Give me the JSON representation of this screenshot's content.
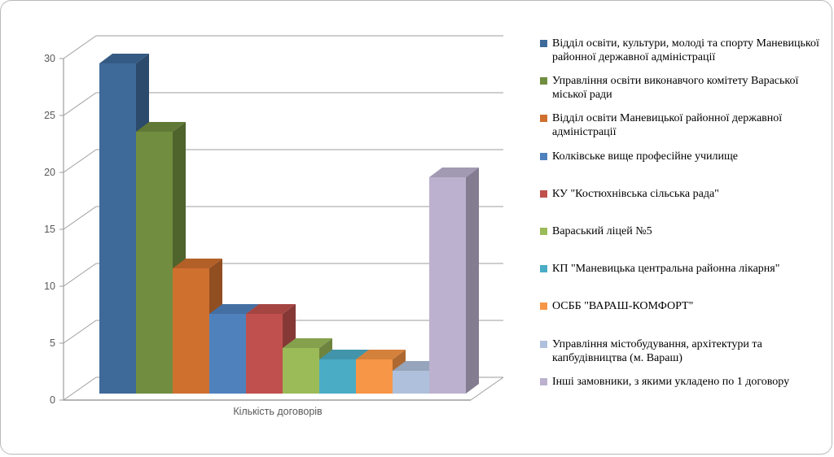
{
  "chart_data": {
    "type": "bar",
    "style": "3d",
    "title": "",
    "xlabel": "Кількість договорів",
    "ylabel": "",
    "ylim": [
      0,
      30
    ],
    "ytick_interval": 5,
    "yticks": [
      "0",
      "5",
      "10",
      "15",
      "20",
      "25",
      "30"
    ],
    "grid": true,
    "legend_position": "right",
    "series": [
      {
        "name": "Відділ освіти, культури, молоді та спорту Маневицької районної державної адміністрації",
        "value": 29,
        "color": "#3E6A9A"
      },
      {
        "name": "Управління освіти виконавчого комітету Вараської міської ради",
        "value": 23,
        "color": "#718D3F"
      },
      {
        "name": "Відділ освіти Маневицької районної державної адміністрації",
        "value": 11,
        "color": "#CF702F"
      },
      {
        "name": "Колківське вище професійне училище",
        "value": 7,
        "color": "#4F81BD"
      },
      {
        "name": "КУ \"Костюхнівська сільська рада\"",
        "value": 7,
        "color": "#C0504D"
      },
      {
        "name": "Вараський ліцей №5",
        "value": 4,
        "color": "#9BBB59"
      },
      {
        "name": "КП \"Маневицька центральна районна лікарня\"",
        "value": 3,
        "color": "#4BACC6"
      },
      {
        "name": "ОСББ \"ВАРАШ-КОМФОРТ\"",
        "value": 3,
        "color": "#F79646"
      },
      {
        "name": "Управління містобудування, архітектури та капбудівництва (м. Вараш)",
        "value": 2,
        "color": "#AEC0DB"
      },
      {
        "name": "Інші замовники, з якими укладено по 1 договору",
        "value": 19,
        "color": "#BCB2CF"
      }
    ],
    "axis_color": "#9D9D9D",
    "tick_text_color": "#595959"
  }
}
